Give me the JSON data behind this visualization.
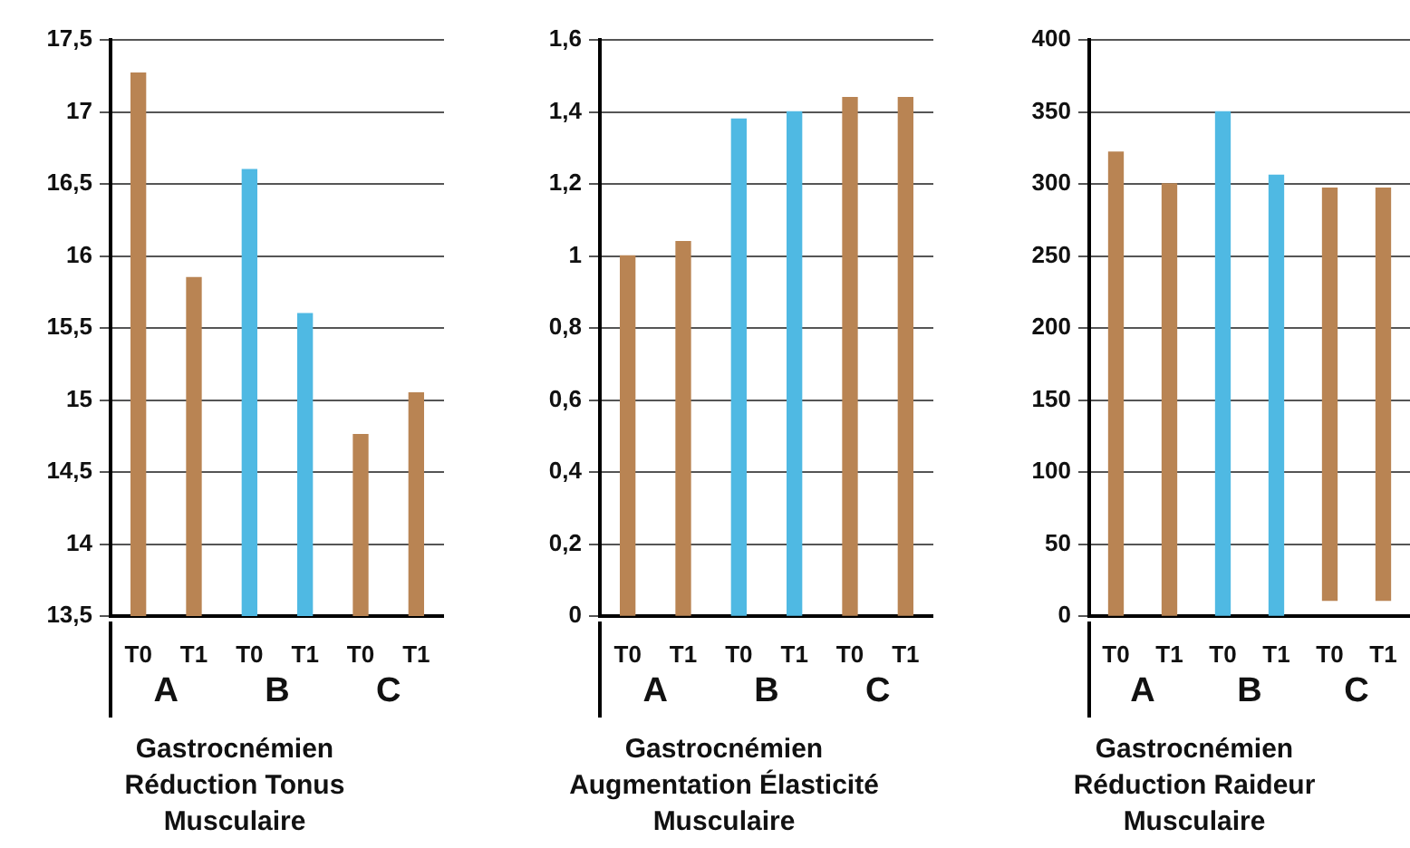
{
  "chart_data": [
    {
      "type": "bar",
      "title": "Gastrocnémien\nRéduction Tonus\nMusculaire",
      "categories": [
        "T0",
        "T1",
        "T0",
        "T1",
        "T0",
        "T1"
      ],
      "values": [
        17.27,
        15.85,
        16.6,
        15.6,
        14.76,
        15.05
      ],
      "colors": [
        "#b98453",
        "#b98453",
        "#4fb9e3",
        "#4fb9e3",
        "#b98453",
        "#b98453"
      ],
      "ylim": [
        13.5,
        17.5
      ],
      "yticks": [
        {
          "value": 13.5,
          "label": "13,5"
        },
        14,
        {
          "value": 14.5,
          "label": "14,5"
        },
        15,
        {
          "value": 15.5,
          "label": "15,5"
        },
        16,
        {
          "value": 16.5,
          "label": "16,5"
        },
        17,
        {
          "value": 17.5,
          "label": "17,5"
        }
      ],
      "grid": "y",
      "annotations": [
        "A",
        "B",
        "C"
      ]
    },
    {
      "type": "bar",
      "title": "Gastrocnémien\nAugmentation Élasticité\nMusculaire",
      "categories": [
        "T0",
        "T1",
        "T0",
        "T1",
        "T0",
        "T1"
      ],
      "values": [
        1.0,
        1.04,
        1.38,
        1.4,
        1.44,
        1.44
      ],
      "colors": [
        "#b98453",
        "#b98453",
        "#4fb9e3",
        "#4fb9e3",
        "#b98453",
        "#b98453"
      ],
      "ylim": [
        0,
        1.6
      ],
      "yticks": [
        0,
        {
          "value": 0.2,
          "label": "0,2"
        },
        {
          "value": 0.4,
          "label": "0,4"
        },
        {
          "value": 0.6,
          "label": "0,6"
        },
        {
          "value": 0.8,
          "label": "0,8"
        },
        1,
        {
          "value": 1.2,
          "label": "1,2"
        },
        {
          "value": 1.4,
          "label": "1,4"
        },
        {
          "value": 1.6,
          "label": "1,6"
        }
      ],
      "grid": "y",
      "annotations": [
        "A",
        "B",
        "C"
      ]
    },
    {
      "type": "bar",
      "title": "Gastrocnémien\nRéduction Raideur\nMusculaire",
      "categories": [
        "T0",
        "T1",
        "T0",
        "T1",
        "T0",
        "T1"
      ],
      "values": [
        322,
        300,
        350,
        306,
        286,
        286
      ],
      "base": [
        0,
        0,
        0,
        0,
        11,
        11
      ],
      "colors": [
        "#b98453",
        "#b98453",
        "#4fb9e3",
        "#4fb9e3",
        "#b98453",
        "#b98453"
      ],
      "ylim": [
        0,
        400
      ],
      "yticks": [
        0,
        50,
        100,
        150,
        200,
        250,
        300,
        350,
        400
      ],
      "grid": "y",
      "annotations": [
        "A",
        "B",
        "C"
      ]
    }
  ]
}
